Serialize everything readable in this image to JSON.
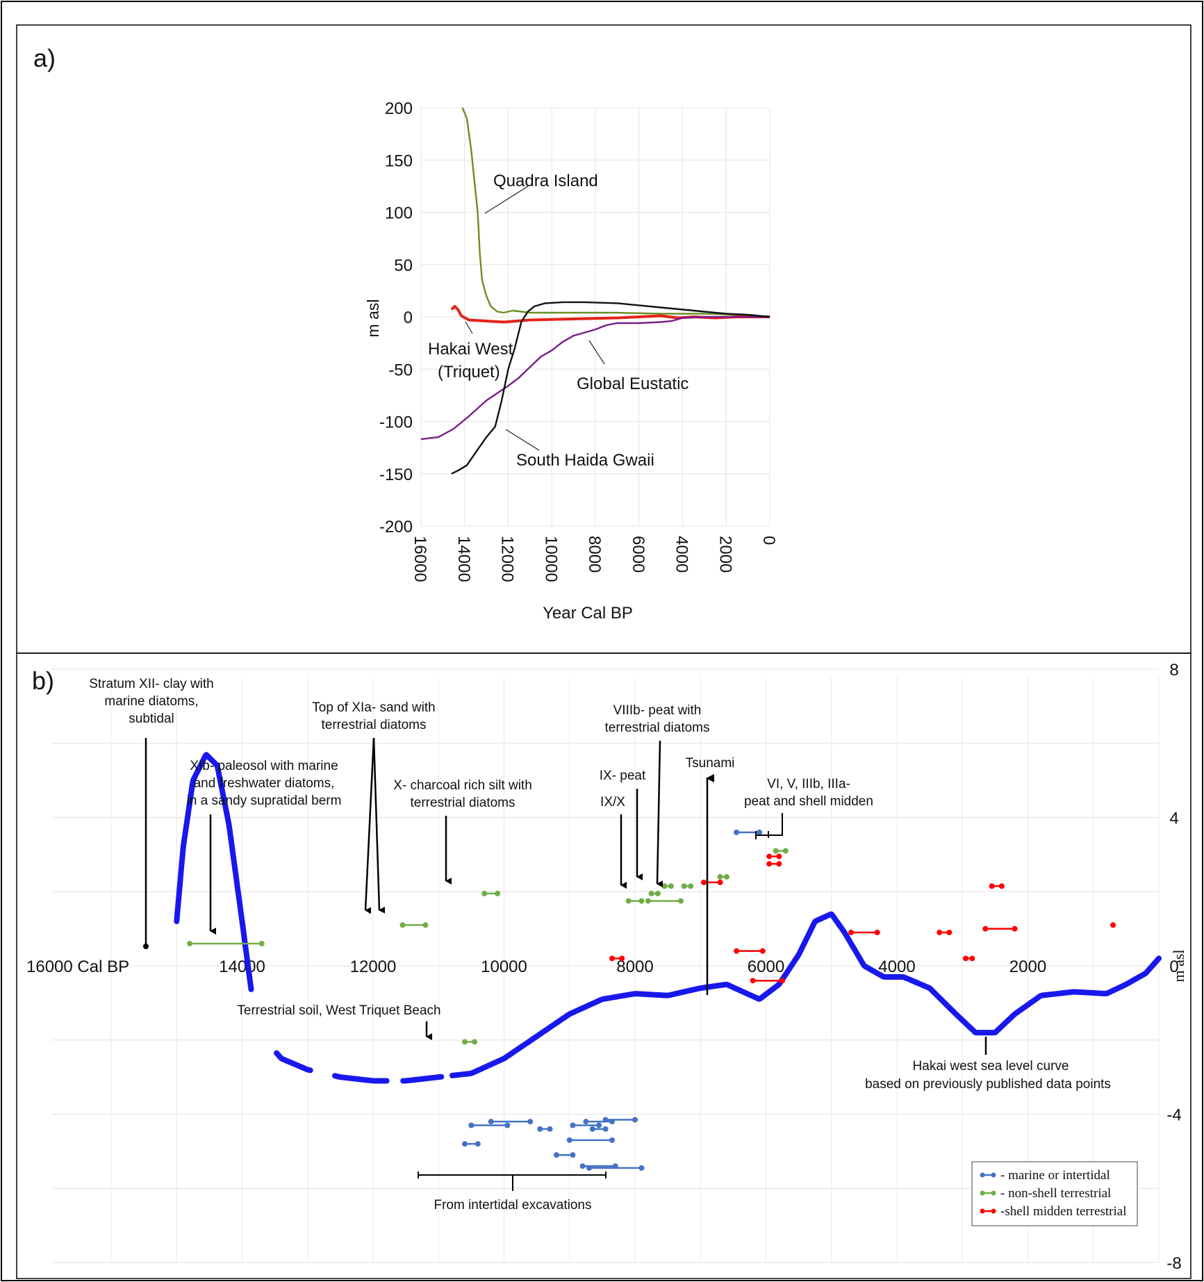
{
  "chart_data": [
    {
      "panel_label": "a)",
      "type": "line",
      "xlabel": "Year Cal BP",
      "ylabel": "m asl",
      "xlim": [
        16000,
        0
      ],
      "ylim": [
        -200,
        200
      ],
      "x_ticks": [
        "16000",
        "14000",
        "12000",
        "10000",
        "8000",
        "6000",
        "4000",
        "2000",
        "0"
      ],
      "y_ticks": [
        "200",
        "150",
        "100",
        "50",
        "0",
        "-50",
        "-100",
        "-150",
        "-200"
      ],
      "grid": true,
      "series": [
        {
          "name": "Quadra Island",
          "color": "#6b8e23",
          "points": [
            [
              14100,
              200
            ],
            [
              13900,
              190
            ],
            [
              13700,
              160
            ],
            [
              13500,
              120
            ],
            [
              13400,
              100
            ],
            [
              13300,
              60
            ],
            [
              13200,
              35
            ],
            [
              13000,
              20
            ],
            [
              12800,
              10
            ],
            [
              12500,
              5
            ],
            [
              12200,
              4
            ],
            [
              11800,
              6
            ],
            [
              11000,
              4
            ],
            [
              9000,
              4
            ],
            [
              7000,
              4
            ],
            [
              5000,
              3
            ],
            [
              3000,
              3
            ],
            [
              1500,
              2
            ],
            [
              0,
              0
            ]
          ]
        },
        {
          "name": "Hakai West (Triquet)",
          "color": "#e3231b",
          "points": [
            [
              14600,
              7
            ],
            [
              14450,
              10
            ],
            [
              14300,
              7
            ],
            [
              14150,
              1
            ],
            [
              13800,
              -3
            ],
            [
              13000,
              -4
            ],
            [
              12200,
              -5
            ],
            [
              11000,
              -3
            ],
            [
              9000,
              -2
            ],
            [
              7000,
              -1
            ],
            [
              6000,
              0
            ],
            [
              5000,
              1
            ],
            [
              4200,
              -1
            ],
            [
              3500,
              0
            ],
            [
              2500,
              -1
            ],
            [
              1500,
              0
            ],
            [
              0,
              0
            ]
          ]
        },
        {
          "name": "Global Eustatic",
          "color": "#7b1a8c",
          "points": [
            [
              16000,
              -117
            ],
            [
              15200,
              -115
            ],
            [
              14500,
              -107
            ],
            [
              13800,
              -95
            ],
            [
              13000,
              -80
            ],
            [
              12000,
              -66
            ],
            [
              11500,
              -58
            ],
            [
              11000,
              -48
            ],
            [
              10500,
              -38
            ],
            [
              10000,
              -32
            ],
            [
              9500,
              -24
            ],
            [
              9000,
              -18
            ],
            [
              8500,
              -15
            ],
            [
              8000,
              -12
            ],
            [
              7500,
              -8
            ],
            [
              7000,
              -6
            ],
            [
              6000,
              -6
            ],
            [
              5000,
              -5
            ],
            [
              4500,
              -4
            ],
            [
              4000,
              -1
            ],
            [
              3000,
              0
            ],
            [
              0,
              0
            ]
          ]
        },
        {
          "name": "South Haida Gwaii",
          "color": "#111111",
          "points": [
            [
              14600,
              -150
            ],
            [
              14300,
              -147
            ],
            [
              13900,
              -142
            ],
            [
              13500,
              -130
            ],
            [
              13000,
              -115
            ],
            [
              12600,
              -105
            ],
            [
              12300,
              -80
            ],
            [
              12000,
              -50
            ],
            [
              11700,
              -30
            ],
            [
              11400,
              -5
            ],
            [
              11100,
              5
            ],
            [
              10800,
              10
            ],
            [
              10300,
              13
            ],
            [
              9500,
              14
            ],
            [
              8500,
              14
            ],
            [
              7000,
              13
            ],
            [
              6000,
              11
            ],
            [
              5000,
              9
            ],
            [
              4000,
              7
            ],
            [
              3000,
              5
            ],
            [
              2000,
              3
            ],
            [
              1000,
              2
            ],
            [
              0,
              0
            ]
          ]
        }
      ],
      "annotations": [
        "Quadra Island",
        "Hakai West",
        "(Triquet)",
        "Global Eustatic",
        "South Haida Gwaii"
      ]
    },
    {
      "panel_label": "b)",
      "type": "scatter",
      "xlabel": "",
      "ylabel": "m asl",
      "x_origin_label": "16000 Cal BP",
      "xlim": [
        16000,
        0
      ],
      "ylim": [
        -8,
        8
      ],
      "x_ticks": [
        "14000",
        "12000",
        "10000",
        "8000",
        "6000",
        "4000",
        "2000"
      ],
      "y_ticks": [
        "8",
        "4",
        "0",
        "-4",
        "-8"
      ],
      "grid": true,
      "curve": {
        "name": "Hakai west sea level curve based on previously published data points",
        "color": "#1818ee",
        "points": [
          [
            15000,
            1.2
          ],
          [
            14900,
            3.2
          ],
          [
            14750,
            5.0
          ],
          [
            14550,
            5.7
          ],
          [
            14380,
            5.4
          ],
          [
            14200,
            3.8
          ],
          [
            14000,
            1.2
          ],
          [
            13850,
            -0.8
          ],
          [
            13700,
            -1.9
          ],
          [
            13400,
            -2.5
          ],
          [
            13000,
            -2.8
          ],
          [
            12500,
            -3.0
          ],
          [
            12000,
            -3.1
          ],
          [
            11500,
            -3.1
          ],
          [
            11000,
            -3.0
          ],
          [
            10500,
            -2.9
          ],
          [
            10000,
            -2.5
          ],
          [
            9500,
            -1.9
          ],
          [
            9000,
            -1.3
          ],
          [
            8500,
            -0.9
          ],
          [
            8000,
            -0.75
          ],
          [
            7500,
            -0.8
          ],
          [
            7000,
            -0.6
          ],
          [
            6600,
            -0.5
          ],
          [
            6350,
            -0.7
          ],
          [
            6100,
            -0.9
          ],
          [
            5800,
            -0.5
          ],
          [
            5500,
            0.3
          ],
          [
            5250,
            1.2
          ],
          [
            5000,
            1.4
          ],
          [
            4800,
            0.9
          ],
          [
            4500,
            0.0
          ],
          [
            4200,
            -0.3
          ],
          [
            3900,
            -0.3
          ],
          [
            3500,
            -0.6
          ],
          [
            3100,
            -1.3
          ],
          [
            2800,
            -1.8
          ],
          [
            2500,
            -1.8
          ],
          [
            2200,
            -1.3
          ],
          [
            1800,
            -0.8
          ],
          [
            1300,
            -0.7
          ],
          [
            800,
            -0.75
          ],
          [
            500,
            -0.5
          ],
          [
            200,
            -0.2
          ],
          [
            0,
            0.2
          ]
        ],
        "gaps": [
          [
            13850,
            13500
          ],
          [
            12950,
            12600
          ],
          [
            11750,
            11550
          ],
          [
            10950,
            10800
          ]
        ]
      },
      "data": {
        "marine_or_intertidal": [
          {
            "x1": 6450,
            "x2": 6100,
            "y": 3.6
          },
          {
            "x1": 10600,
            "x2": 10400,
            "y": -4.8
          },
          {
            "x1": 10500,
            "x2": 9950,
            "y": -4.3
          },
          {
            "x1": 10200,
            "x2": 9600,
            "y": -4.2
          },
          {
            "x1": 9450,
            "x2": 9300,
            "y": -4.4
          },
          {
            "x1": 9200,
            "x2": 8950,
            "y": -5.1
          },
          {
            "x1": 8950,
            "x2": 8550,
            "y": -4.3
          },
          {
            "x1": 8650,
            "x2": 8450,
            "y": -4.4
          },
          {
            "x1": 9000,
            "x2": 8350,
            "y": -4.7
          },
          {
            "x1": 8750,
            "x2": 8350,
            "y": -4.2
          },
          {
            "x1": 8450,
            "x2": 8000,
            "y": -4.15
          },
          {
            "x1": 8800,
            "x2": 8300,
            "y": -5.4
          },
          {
            "x1": 8700,
            "x2": 7900,
            "y": -5.45
          }
        ],
        "non_shell_terrestrial": [
          {
            "x1": 14800,
            "x2": 13700,
            "y": 0.6
          },
          {
            "x1": 11550,
            "x2": 11200,
            "y": 1.1
          },
          {
            "x1": 10300,
            "x2": 10100,
            "y": 1.95
          },
          {
            "x1": 8100,
            "x2": 7900,
            "y": 1.75
          },
          {
            "x1": 7800,
            "x2": 7300,
            "y": 1.75
          },
          {
            "x1": 7750,
            "x2": 7650,
            "y": 1.95
          },
          {
            "x1": 7550,
            "x2": 7450,
            "y": 2.15
          },
          {
            "x1": 7250,
            "x2": 7150,
            "y": 2.15
          },
          {
            "x1": 6700,
            "x2": 6600,
            "y": 2.4
          },
          {
            "x1": 5850,
            "x2": 5700,
            "y": 3.1
          },
          {
            "x1": 10600,
            "x2": 10450,
            "y": -2.05
          }
        ],
        "shell_midden_terrestrial": [
          {
            "x1": 6950,
            "x2": 6700,
            "y": 2.25
          },
          {
            "x1": 5950,
            "x2": 5800,
            "y": 2.95
          },
          {
            "x1": 5950,
            "x2": 5800,
            "y": 2.75
          },
          {
            "x1": 6450,
            "x2": 6050,
            "y": 0.4
          },
          {
            "x1": 6200,
            "x2": 5750,
            "y": -0.4
          },
          {
            "x1": 8350,
            "x2": 8200,
            "y": 0.2
          },
          {
            "x1": 4700,
            "x2": 4300,
            "y": 0.9
          },
          {
            "x1": 3350,
            "x2": 3200,
            "y": 0.9
          },
          {
            "x1": 2950,
            "x2": 2850,
            "y": 0.2
          },
          {
            "x1": 2650,
            "x2": 2200,
            "y": 1.0
          },
          {
            "x1": 2550,
            "x2": 2400,
            "y": 2.15
          },
          {
            "x1": 700,
            "x2": 700,
            "y": 1.1
          }
        ]
      },
      "legend": {
        "position": "bottom-right",
        "entries": [
          {
            "label": "- marine or intertidal",
            "color": "#4472c4"
          },
          {
            "label": "- non-shell terrestrial",
            "color": "#70ad47"
          },
          {
            "label": "-shell midden terrestrial",
            "color": "#ff0000"
          }
        ]
      },
      "annotations": {
        "stratum_xii": [
          "Stratum XII- clay with",
          "marine diatoms,",
          "subtidal"
        ],
        "xib": [
          "XIb- paleosol with marine",
          "and freshwater diatoms,",
          "in a sandy supratidal berm"
        ],
        "top_xia": [
          "Top of XIa- sand with",
          "terrestrial diatoms"
        ],
        "x_charcoal": [
          "X- charcoal rich silt with",
          "terrestrial diatoms"
        ],
        "viiib": [
          "VIIIb- peat with",
          "terrestrial diatoms"
        ],
        "ix_peat": "IX- peat",
        "ix_x": "IX/X",
        "tsunami": "Tsunami",
        "vi_v": [
          "VI, V, IIIb, IIIa-",
          "peat and shell midden"
        ],
        "terrestrial_soil": "Terrestrial soil, West Triquet Beach",
        "hakai_curve": [
          "Hakai west sea level curve",
          "based on previously published data points"
        ],
        "intertidal": "From intertidal excavations"
      }
    }
  ]
}
